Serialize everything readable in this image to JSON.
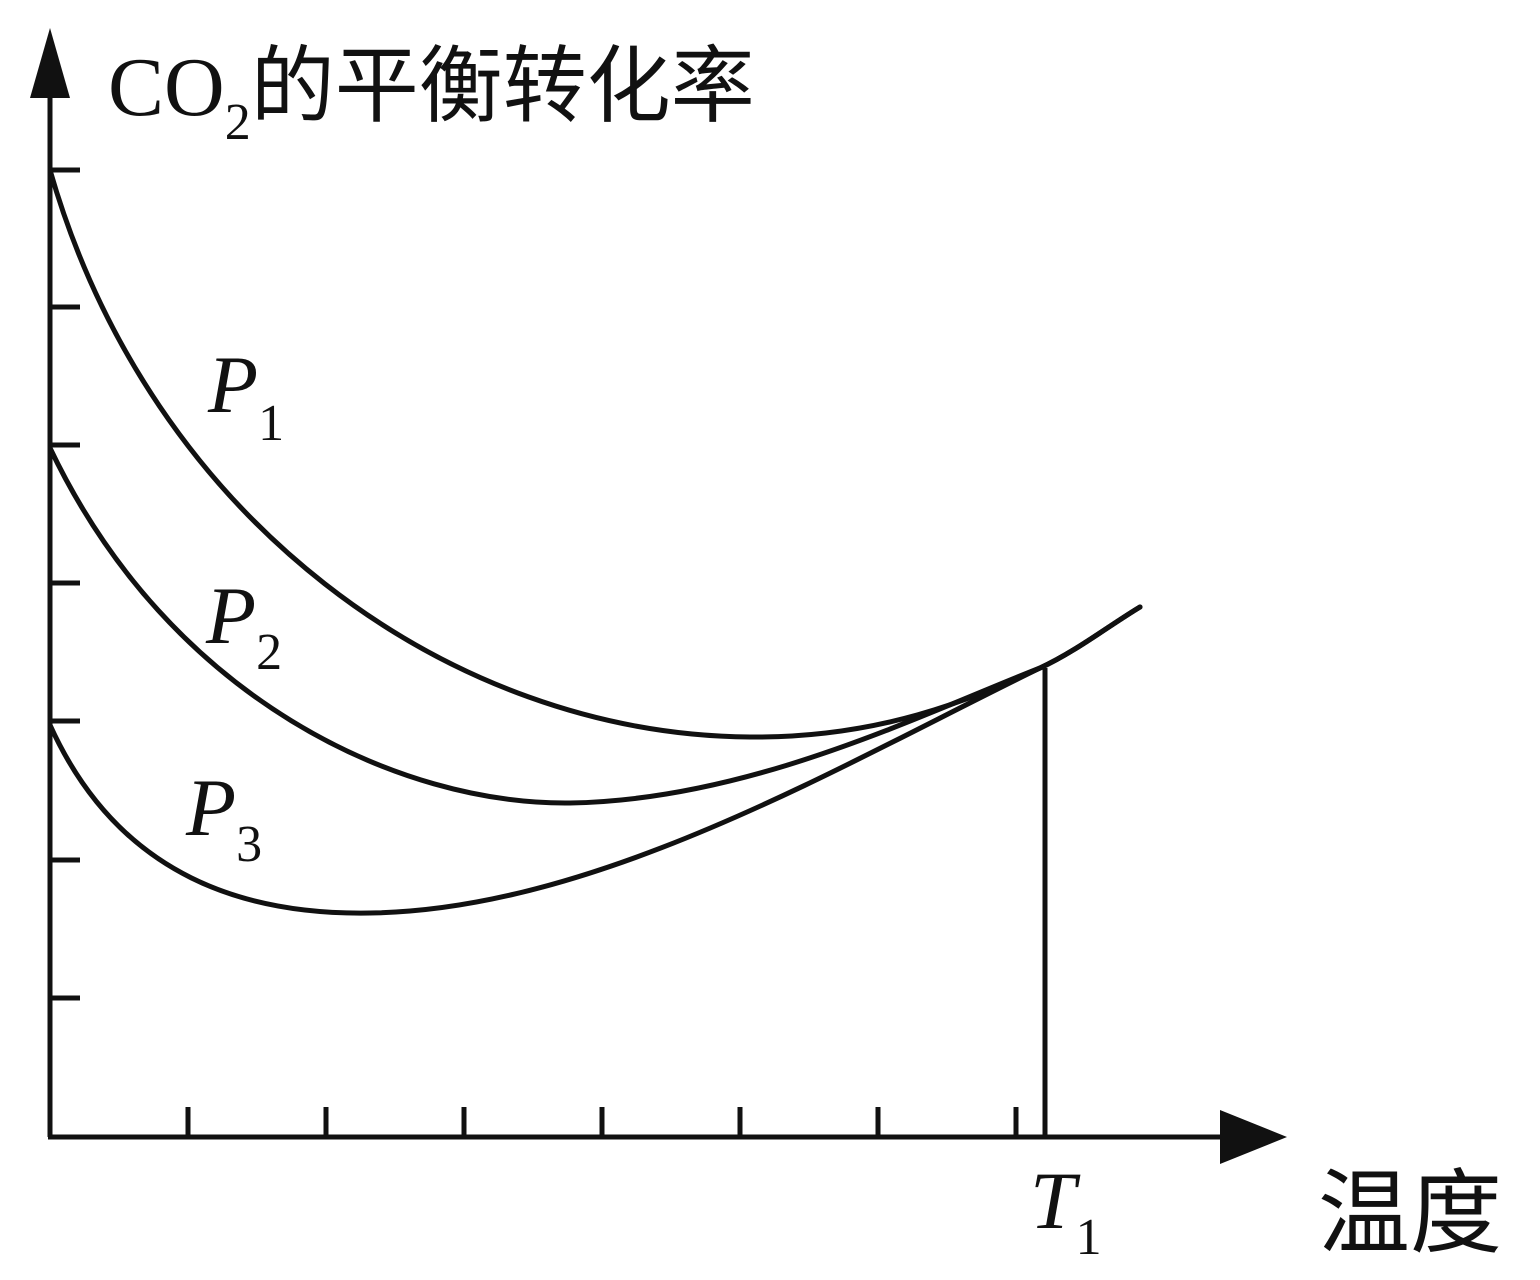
{
  "axis_labels": {
    "y": {
      "text": "CO",
      "sub": "2",
      "rest": "的平衡转化率"
    },
    "x": "温度"
  },
  "curve_labels": [
    {
      "text": "P",
      "sub": "1"
    },
    {
      "text": "P",
      "sub": "2"
    },
    {
      "text": "P",
      "sub": "3"
    }
  ],
  "marker_label": {
    "text": "T",
    "sub": "1"
  }
}
